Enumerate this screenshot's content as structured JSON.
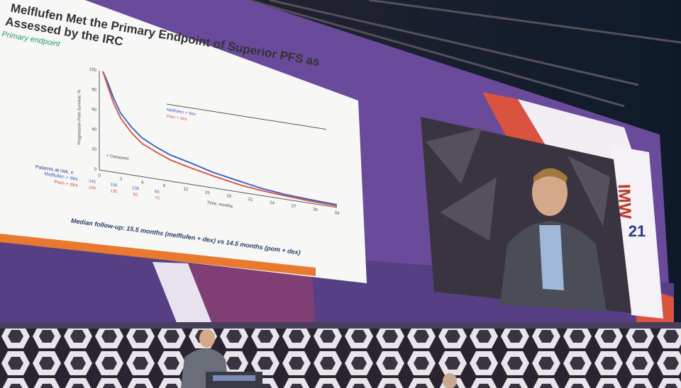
{
  "slide": {
    "title_line1": "Melflufen Met the Primary Endpoint of Superior PFS as",
    "title_line2": "Assessed by the IRC",
    "subtitle": "Primary endpoint",
    "y_axis_label": "Progression-Free Survival, %",
    "y_ticks": [
      "100",
      "80",
      "60",
      "40",
      "20",
      "0"
    ],
    "x_ticks": [
      "0",
      "3",
      "6",
      "9",
      "12",
      "15",
      "18",
      "21",
      "24",
      "27",
      "30",
      "33"
    ],
    "x_axis_label": "Time, months",
    "censored_label": "+ Censored",
    "legend": [
      "Melflufen + dex",
      "Pom + dex"
    ],
    "at_risk_label": "Patients at risk, n",
    "at_risk_rows": [
      {
        "name": "Melflufen + dex",
        "counts": [
          "245",
          "158",
          "108",
          "84"
        ]
      },
      {
        "name": "Pom + dex",
        "counts": [
          "249",
          "130",
          "82",
          "70"
        ]
      }
    ],
    "follow_up": "Median follow-up: 15.5 months (melflufen + dex) vs 14.5 months (pom + dex)"
  },
  "screen": {
    "logo": "IMW",
    "logo_number": "21"
  }
}
